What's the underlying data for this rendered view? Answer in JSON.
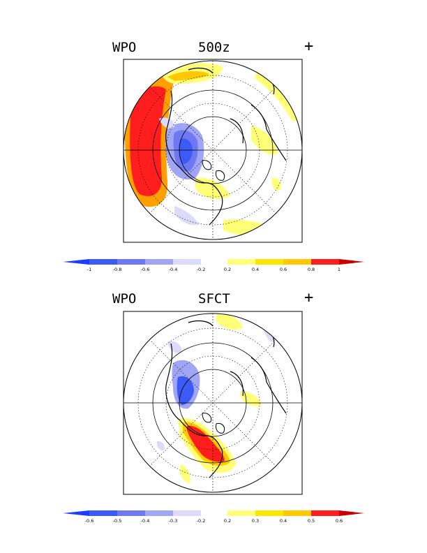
{
  "panels": [
    {
      "index_label": "WPO",
      "field_label": "500z",
      "sign_label": "+",
      "colorbar": {
        "labels": [
          "-1",
          "-0.8",
          "-0.6",
          "-0.4",
          "-0.2",
          "0.2",
          "0.4",
          "0.6",
          "0.8",
          "1"
        ]
      }
    },
    {
      "index_label": "WPO",
      "field_label": "SFCT",
      "sign_label": "+",
      "colorbar": {
        "labels": [
          "-0.6",
          "-0.5",
          "-0.4",
          "-0.3",
          "-0.2",
          "0.2",
          "0.3",
          "0.4",
          "0.5",
          "0.6"
        ]
      }
    }
  ],
  "colors": {
    "neg_strong": "#1e3cff",
    "neg_1": "#3c5af5",
    "neg_2": "#6e78f0",
    "neg_3": "#a0a5f5",
    "neg_4": "#dcdcfa",
    "pos_1": "#ffff78",
    "pos_2": "#fae600",
    "pos_3": "#ffc800",
    "pos_4": "#ffa000",
    "pos_5": "#ff1e1e",
    "pos_strong": "#c80000"
  }
}
